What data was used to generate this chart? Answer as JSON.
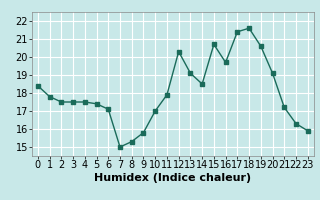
{
  "x": [
    0,
    1,
    2,
    3,
    4,
    5,
    6,
    7,
    8,
    9,
    10,
    11,
    12,
    13,
    14,
    15,
    16,
    17,
    18,
    19,
    20,
    21,
    22,
    23
  ],
  "y": [
    18.4,
    17.8,
    17.5,
    17.5,
    17.5,
    17.4,
    17.1,
    15.0,
    15.3,
    15.8,
    17.0,
    17.9,
    20.3,
    19.1,
    18.5,
    20.7,
    19.7,
    21.4,
    21.6,
    20.6,
    19.1,
    17.2,
    16.3,
    15.9
  ],
  "xlabel": "Humidex (Indice chaleur)",
  "xlim": [
    -0.5,
    23.5
  ],
  "ylim": [
    14.5,
    22.5
  ],
  "yticks": [
    15,
    16,
    17,
    18,
    19,
    20,
    21,
    22
  ],
  "xticks": [
    0,
    1,
    2,
    3,
    4,
    5,
    6,
    7,
    8,
    9,
    10,
    11,
    12,
    13,
    14,
    15,
    16,
    17,
    18,
    19,
    20,
    21,
    22,
    23
  ],
  "line_color": "#1a6b5a",
  "marker": "s",
  "marker_size": 2.5,
  "bg_color": "#c8e8e8",
  "grid_color": "#ffffff",
  "xlabel_fontsize": 8,
  "tick_fontsize": 7
}
